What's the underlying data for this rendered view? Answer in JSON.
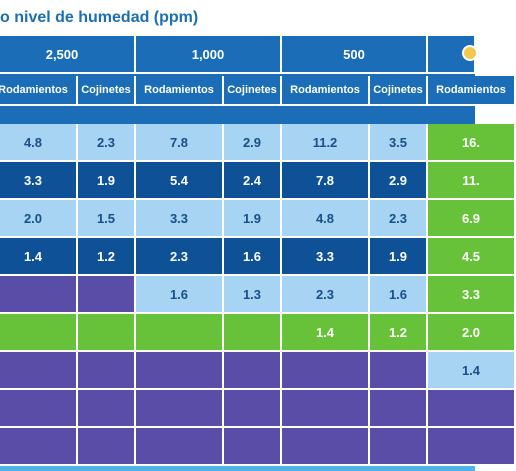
{
  "title": "o nivel de humedad (ppm)",
  "columns": {
    "groups": [
      "2,500",
      "1,000",
      "500",
      ""
    ],
    "sub_labels": [
      "Rodamientos",
      "Cojinetes",
      "Rodamientos",
      "Cojinetes",
      "Rodamientos",
      "Cojinetes",
      "Rodamientos"
    ]
  },
  "rows": [
    [
      "4.8",
      "2.3",
      "7.8",
      "2.9",
      "11.2",
      "3.5",
      "16."
    ],
    [
      "3.3",
      "1.9",
      "5.4",
      "2.4",
      "7.8",
      "2.9",
      "11."
    ],
    [
      "2.0",
      "1.5",
      "3.3",
      "1.9",
      "4.8",
      "2.3",
      "6.9"
    ],
    [
      "1.4",
      "1.2",
      "2.3",
      "1.6",
      "3.3",
      "1.9",
      "4.5"
    ],
    [
      "",
      "",
      "1.6",
      "1.3",
      "2.3",
      "1.6",
      "3.3"
    ],
    [
      "",
      "",
      "",
      "",
      "1.4",
      "1.2",
      "2.0"
    ],
    [
      "",
      "",
      "",
      "",
      "",
      "",
      "1.4"
    ],
    [
      "",
      "",
      "",
      "",
      "",
      "",
      ""
    ]
  ],
  "colors": {
    "title": "#1c6fb0",
    "header_blue": "#1a6db6",
    "light_blue": "#a8d4f4",
    "dark_blue": "#0f5196",
    "green": "#67c23a",
    "purple": "#5a4da8"
  },
  "icons": {
    "top_right_badge": "circle-badge-icon"
  }
}
